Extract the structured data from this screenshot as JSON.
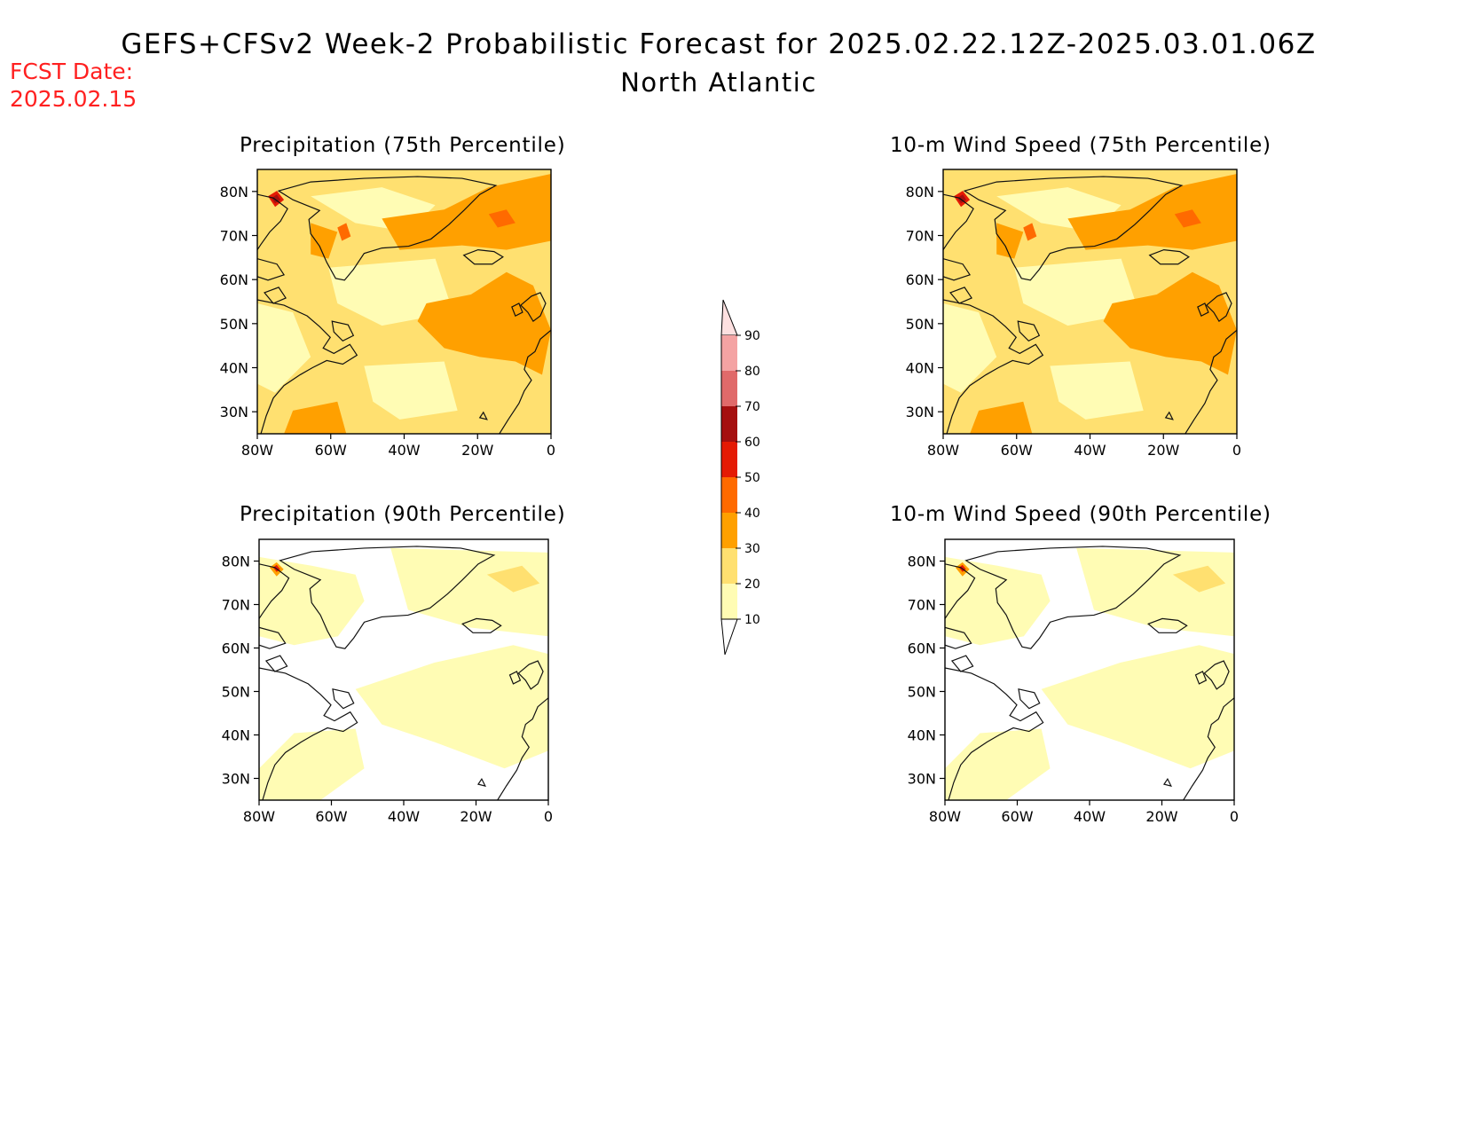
{
  "header": {
    "title": "GEFS+CFSv2 Week-2 Probabilistic Forecast for 2025.02.22.12Z-2025.03.01.06Z",
    "region": "North Atlantic",
    "fcst_label": "FCST Date:",
    "fcst_date": "2025.02.15"
  },
  "panels": [
    {
      "id": "precip75",
      "title": "Precipitation (75th Percentile)",
      "level": "high"
    },
    {
      "id": "wind75",
      "title": "10-m Wind Speed (75th Percentile)",
      "level": "high"
    },
    {
      "id": "precip90",
      "title": "Precipitation (90th Percentile)",
      "level": "low"
    },
    {
      "id": "wind90",
      "title": "10-m Wind Speed (90th Percentile)",
      "level": "low"
    }
  ],
  "axes": {
    "lon_ticks": [
      "80W",
      "60W",
      "40W",
      "20W",
      "0"
    ],
    "lat_ticks": [
      "80N",
      "70N",
      "60N",
      "50N",
      "40N",
      "30N"
    ]
  },
  "colorbar": {
    "levels": [
      "90",
      "80",
      "70",
      "60",
      "50",
      "40",
      "30",
      "20",
      "10"
    ],
    "colors": [
      "#fde0e0",
      "#f4a3a3",
      "#e06a6a",
      "#a50f0f",
      "#e41a04",
      "#ff6a00",
      "#ffa000",
      "#ffe070",
      "#fffcb4"
    ]
  },
  "colors": {
    "c10": "#fffcb4",
    "c20": "#ffe070",
    "c30": "#ffa000",
    "c40": "#ff6a00",
    "c50": "#e41a04",
    "c60": "#a50f0f",
    "title_red": "#ff2020"
  }
}
